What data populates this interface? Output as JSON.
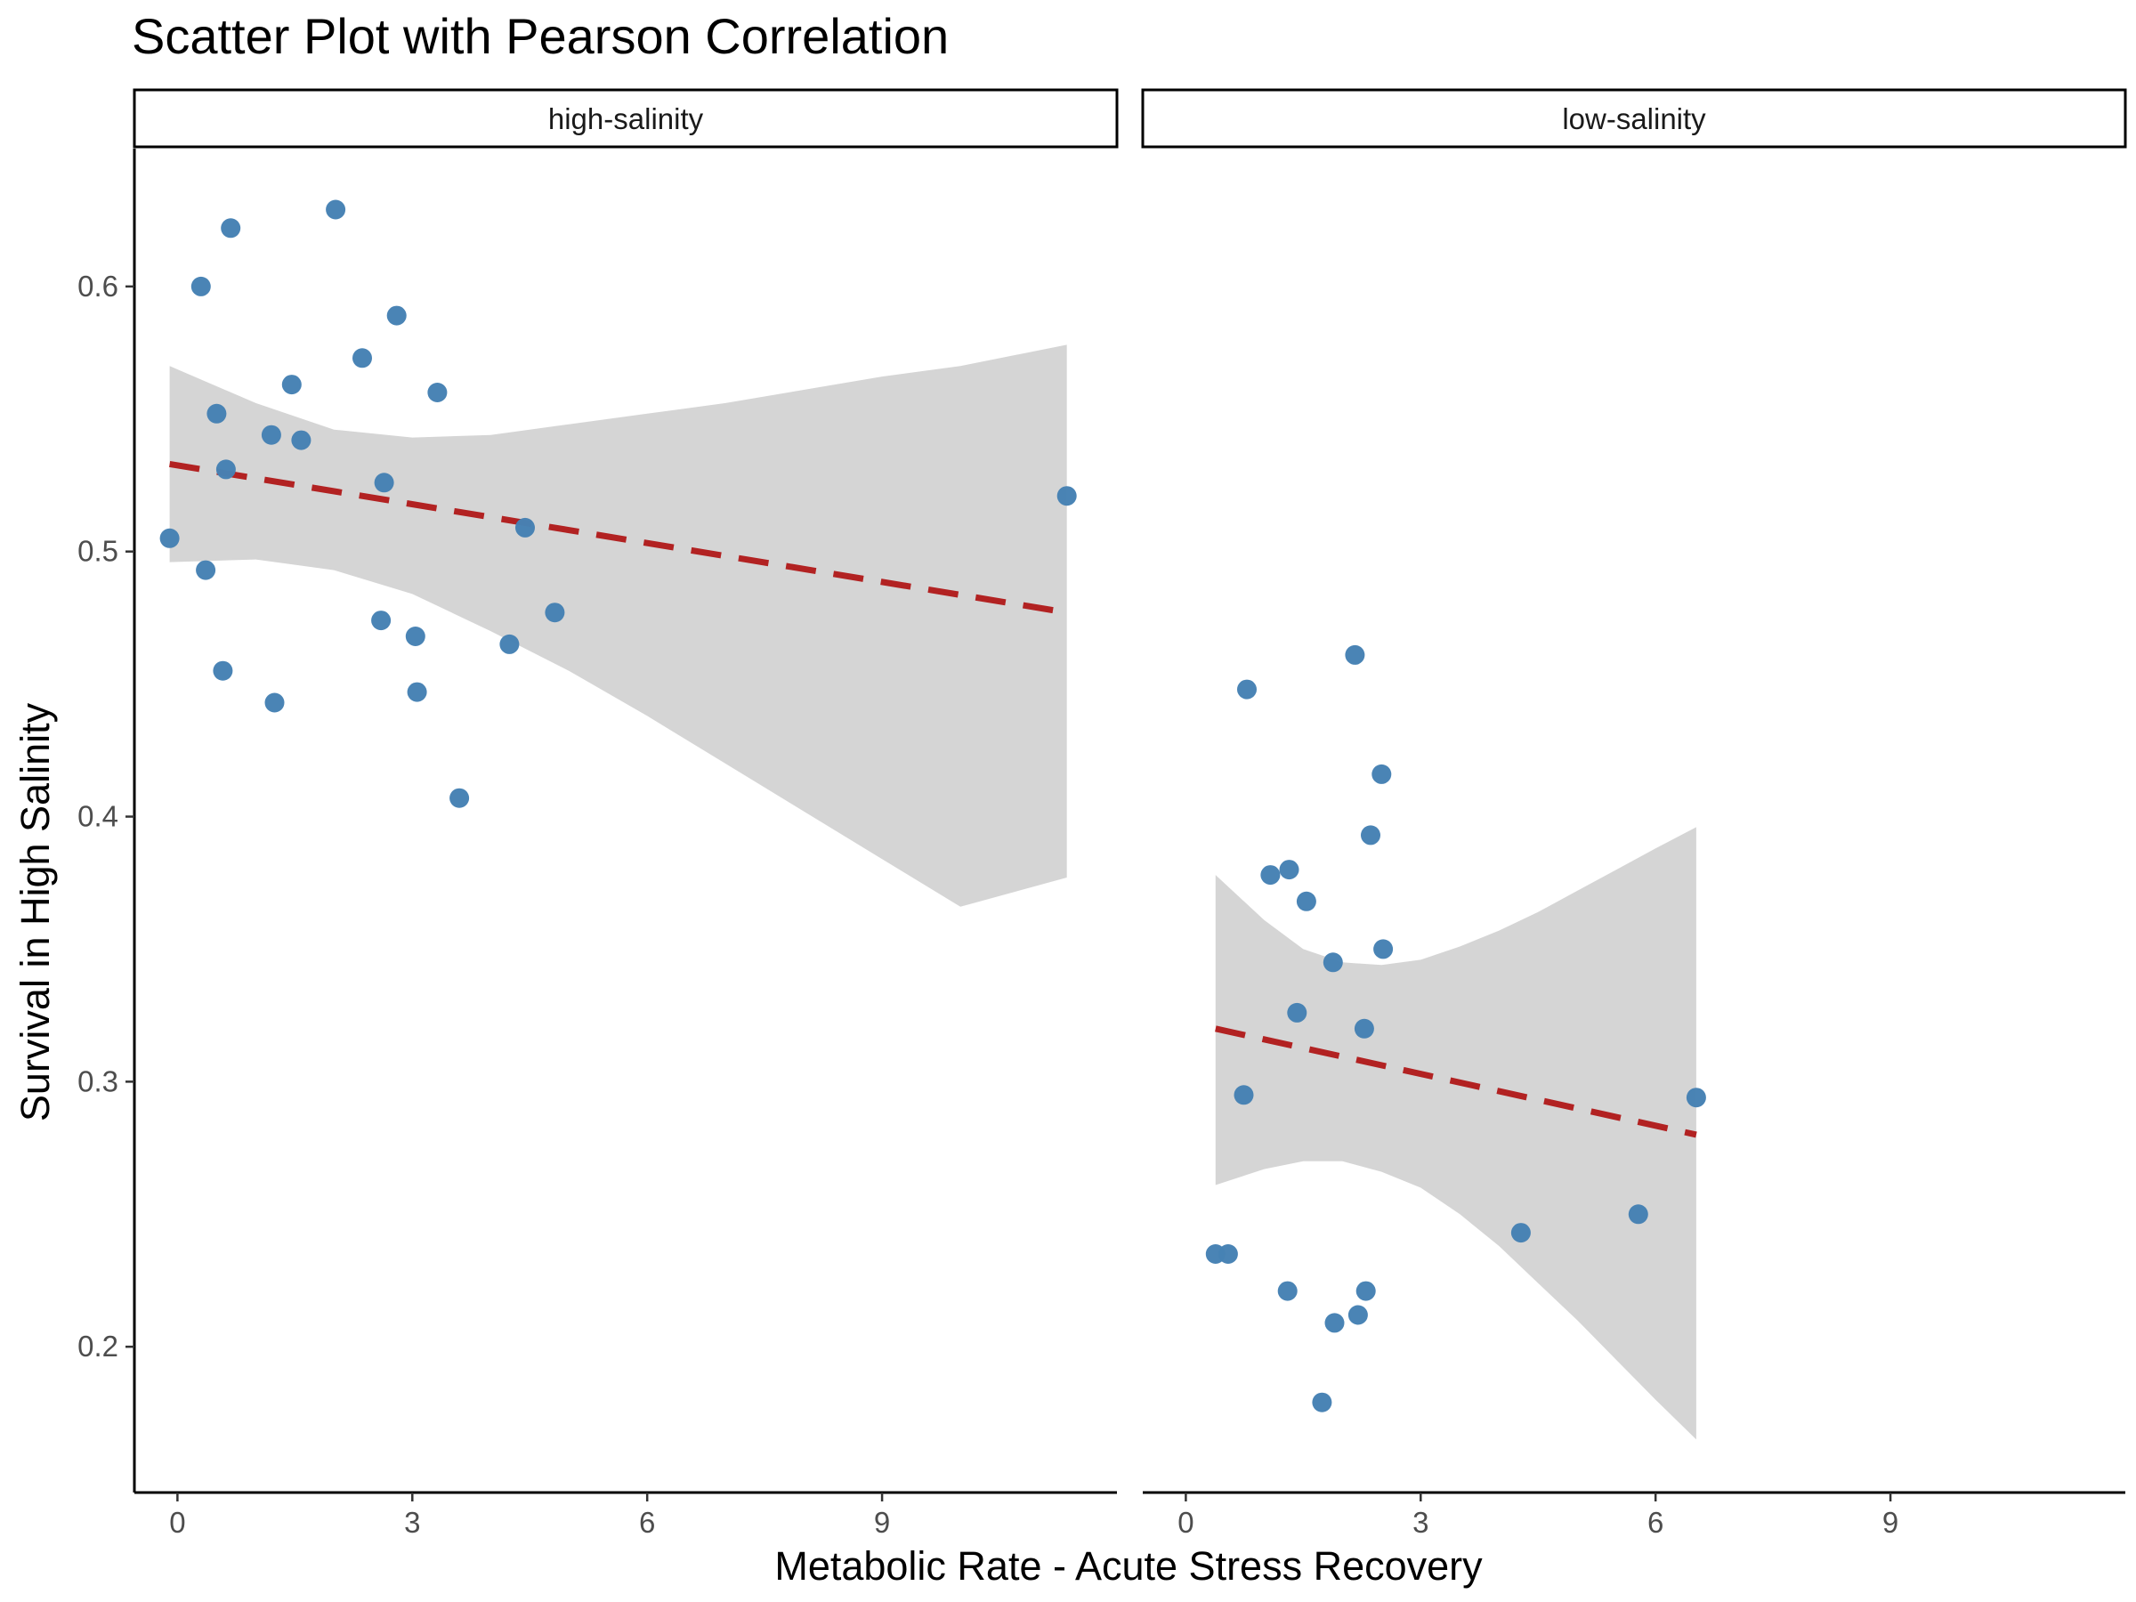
{
  "chart_data": {
    "type": "scatter",
    "title": "Scatter Plot with Pearson Correlation",
    "xlabel": "Metabolic Rate - Acute Stress Recovery",
    "ylabel": "Survival in High Salinity",
    "xlim": [
      -0.55,
      12.0
    ],
    "ylim": [
      0.145,
      0.652
    ],
    "x_ticks": [
      0,
      3,
      6,
      9
    ],
    "x_tick_labels": [
      "0",
      "3",
      "6",
      "9"
    ],
    "y_ticks": [
      0.2,
      0.3,
      0.4,
      0.5,
      0.6
    ],
    "y_tick_labels": [
      "0.2",
      "0.3",
      "0.4",
      "0.5",
      "0.6"
    ],
    "grid": false,
    "colors": {
      "points": "#4682b4",
      "fit_line": "#b22222",
      "ribbon": "#d5d5d5",
      "axis": "#000000"
    },
    "panels": [
      {
        "label": "high-salinity",
        "points": [
          {
            "x": -0.1,
            "y": 0.505
          },
          {
            "x": 0.3,
            "y": 0.6
          },
          {
            "x": 0.36,
            "y": 0.493
          },
          {
            "x": 0.5,
            "y": 0.552
          },
          {
            "x": 0.58,
            "y": 0.455
          },
          {
            "x": 0.62,
            "y": 0.531
          },
          {
            "x": 0.68,
            "y": 0.622
          },
          {
            "x": 1.2,
            "y": 0.544
          },
          {
            "x": 1.24,
            "y": 0.443
          },
          {
            "x": 1.46,
            "y": 0.563
          },
          {
            "x": 1.58,
            "y": 0.542
          },
          {
            "x": 2.02,
            "y": 0.629
          },
          {
            "x": 2.36,
            "y": 0.573
          },
          {
            "x": 2.6,
            "y": 0.474
          },
          {
            "x": 2.64,
            "y": 0.526
          },
          {
            "x": 2.8,
            "y": 0.589
          },
          {
            "x": 3.04,
            "y": 0.468
          },
          {
            "x": 3.06,
            "y": 0.447
          },
          {
            "x": 3.32,
            "y": 0.56
          },
          {
            "x": 3.6,
            "y": 0.407
          },
          {
            "x": 4.24,
            "y": 0.465
          },
          {
            "x": 4.44,
            "y": 0.509
          },
          {
            "x": 4.82,
            "y": 0.477
          },
          {
            "x": 11.36,
            "y": 0.521
          }
        ],
        "fit": {
          "x": [
            -0.1,
            11.36
          ],
          "y": [
            0.533,
            0.477
          ]
        },
        "ribbon": {
          "x": [
            -0.1,
            1.0,
            2.0,
            3.0,
            4.0,
            5.0,
            6.0,
            7.0,
            8.0,
            9.0,
            10.0,
            11.36
          ],
          "lower": [
            0.496,
            0.497,
            0.493,
            0.484,
            0.47,
            0.455,
            0.438,
            0.42,
            0.402,
            0.384,
            0.366,
            0.377
          ],
          "upper": [
            0.57,
            0.556,
            0.546,
            0.543,
            0.544,
            0.548,
            0.552,
            0.556,
            0.561,
            0.566,
            0.57,
            0.578
          ]
        }
      },
      {
        "label": "low-salinity",
        "points": [
          {
            "x": 0.38,
            "y": 0.235
          },
          {
            "x": 0.54,
            "y": 0.235
          },
          {
            "x": 0.74,
            "y": 0.295
          },
          {
            "x": 0.78,
            "y": 0.448
          },
          {
            "x": 1.08,
            "y": 0.378
          },
          {
            "x": 1.3,
            "y": 0.221
          },
          {
            "x": 1.32,
            "y": 0.38
          },
          {
            "x": 1.42,
            "y": 0.326
          },
          {
            "x": 1.54,
            "y": 0.368
          },
          {
            "x": 1.74,
            "y": 0.179
          },
          {
            "x": 1.88,
            "y": 0.345
          },
          {
            "x": 1.9,
            "y": 0.209
          },
          {
            "x": 2.16,
            "y": 0.461
          },
          {
            "x": 2.2,
            "y": 0.212
          },
          {
            "x": 2.28,
            "y": 0.32
          },
          {
            "x": 2.3,
            "y": 0.221
          },
          {
            "x": 2.36,
            "y": 0.393
          },
          {
            "x": 2.5,
            "y": 0.416
          },
          {
            "x": 2.52,
            "y": 0.35
          },
          {
            "x": 4.28,
            "y": 0.243
          },
          {
            "x": 5.78,
            "y": 0.25
          },
          {
            "x": 6.52,
            "y": 0.294
          }
        ],
        "fit": {
          "x": [
            0.38,
            6.52
          ],
          "y": [
            0.32,
            0.28
          ]
        },
        "ribbon": {
          "x": [
            0.38,
            1.0,
            1.5,
            2.0,
            2.5,
            3.0,
            3.5,
            4.0,
            4.5,
            5.0,
            5.5,
            6.0,
            6.52
          ],
          "lower": [
            0.261,
            0.267,
            0.27,
            0.27,
            0.266,
            0.26,
            0.25,
            0.238,
            0.224,
            0.21,
            0.195,
            0.18,
            0.165
          ],
          "upper": [
            0.378,
            0.361,
            0.35,
            0.345,
            0.344,
            0.346,
            0.351,
            0.357,
            0.364,
            0.372,
            0.38,
            0.388,
            0.396
          ]
        }
      }
    ]
  }
}
